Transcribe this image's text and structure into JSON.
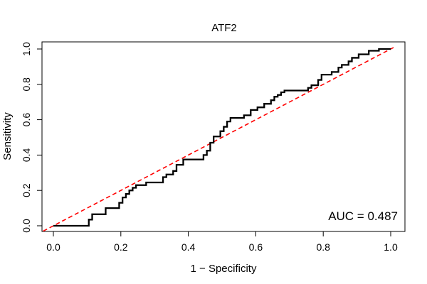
{
  "chart_data": {
    "type": "line",
    "title": "ATF2",
    "xlabel": "1 − Specificity",
    "ylabel": "Sensitivity",
    "xlim": [
      0,
      1
    ],
    "ylim": [
      0,
      1
    ],
    "x_ticks": [
      "0.0",
      "0.2",
      "0.4",
      "0.6",
      "0.8",
      "1.0"
    ],
    "y_ticks": [
      "0.0",
      "0.2",
      "0.4",
      "0.6",
      "0.8",
      "1.0"
    ],
    "grid": false,
    "annotation": "AUC = 0.487",
    "colors": {
      "roc": "#000000",
      "reference": "#ff0000"
    },
    "series": [
      {
        "type": "step",
        "x": [
          0.0,
          0.105,
          0.105,
          0.115,
          0.115,
          0.155,
          0.155,
          0.195,
          0.195,
          0.205,
          0.205,
          0.215,
          0.215,
          0.225,
          0.225,
          0.235,
          0.235,
          0.245,
          0.245,
          0.275,
          0.275,
          0.325,
          0.325,
          0.335,
          0.335,
          0.355,
          0.355,
          0.365,
          0.365,
          0.385,
          0.385,
          0.445,
          0.445,
          0.455,
          0.455,
          0.465,
          0.465,
          0.475,
          0.475,
          0.495,
          0.495,
          0.505,
          0.505,
          0.515,
          0.515,
          0.525,
          0.525,
          0.565,
          0.565,
          0.585,
          0.585,
          0.605,
          0.605,
          0.625,
          0.625,
          0.645,
          0.645,
          0.655,
          0.655,
          0.665,
          0.665,
          0.675,
          0.675,
          0.685,
          0.685,
          0.755,
          0.755,
          0.765,
          0.765,
          0.785,
          0.785,
          0.795,
          0.795,
          0.825,
          0.825,
          0.845,
          0.845,
          0.855,
          0.855,
          0.875,
          0.875,
          0.885,
          0.885,
          0.905,
          0.905,
          0.935,
          0.935,
          0.965,
          0.965,
          1.0
        ],
        "y": [
          0.0,
          0.0,
          0.035,
          0.035,
          0.065,
          0.065,
          0.1,
          0.1,
          0.13,
          0.13,
          0.16,
          0.16,
          0.18,
          0.18,
          0.2,
          0.2,
          0.215,
          0.215,
          0.23,
          0.23,
          0.245,
          0.245,
          0.275,
          0.275,
          0.29,
          0.29,
          0.31,
          0.31,
          0.345,
          0.345,
          0.375,
          0.375,
          0.4,
          0.4,
          0.425,
          0.425,
          0.47,
          0.47,
          0.505,
          0.505,
          0.535,
          0.535,
          0.56,
          0.56,
          0.59,
          0.59,
          0.61,
          0.61,
          0.625,
          0.625,
          0.655,
          0.655,
          0.67,
          0.67,
          0.69,
          0.69,
          0.71,
          0.71,
          0.73,
          0.73,
          0.74,
          0.74,
          0.755,
          0.755,
          0.765,
          0.765,
          0.78,
          0.78,
          0.795,
          0.795,
          0.825,
          0.825,
          0.855,
          0.855,
          0.87,
          0.87,
          0.895,
          0.895,
          0.91,
          0.91,
          0.93,
          0.93,
          0.95,
          0.95,
          0.97,
          0.97,
          0.99,
          0.99,
          1.0,
          1.0
        ]
      },
      {
        "type": "reference",
        "x": [
          0,
          1
        ],
        "y": [
          0,
          1
        ]
      }
    ]
  }
}
